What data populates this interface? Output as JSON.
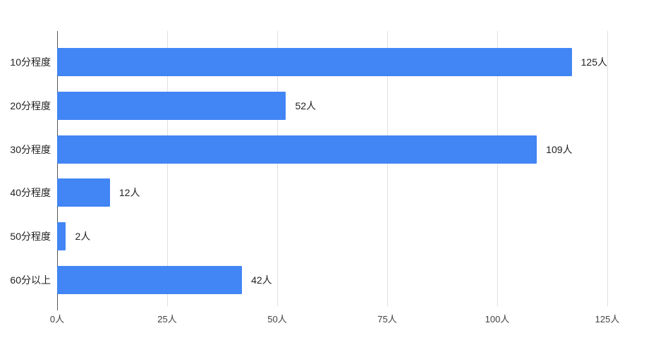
{
  "chart_data": {
    "type": "bar",
    "orientation": "horizontal",
    "title": "",
    "xlabel": "",
    "ylabel": "",
    "categories": [
      "10分程度",
      "20分程度",
      "30分程度",
      "40分程度",
      "50分程度",
      "60分以上"
    ],
    "values": [
      125,
      52,
      109,
      12,
      2,
      42
    ],
    "value_labels": [
      "125人",
      "52人",
      "109人",
      "12人",
      "2人",
      "42人"
    ],
    "unit": "人",
    "xlim": [
      0,
      125
    ],
    "x_ticks": [
      0,
      25,
      50,
      75,
      100,
      125
    ],
    "x_tick_labels": [
      "0人",
      "25人",
      "50人",
      "75人",
      "100人",
      "125人"
    ],
    "grid": true,
    "legend": "none",
    "colors": {
      "bar": "#4285f4",
      "gridline": "#e0e0e0",
      "zero_axis": "#555555",
      "label_text": "#212121",
      "tick_text": "#424242",
      "background": "#ffffff"
    }
  }
}
